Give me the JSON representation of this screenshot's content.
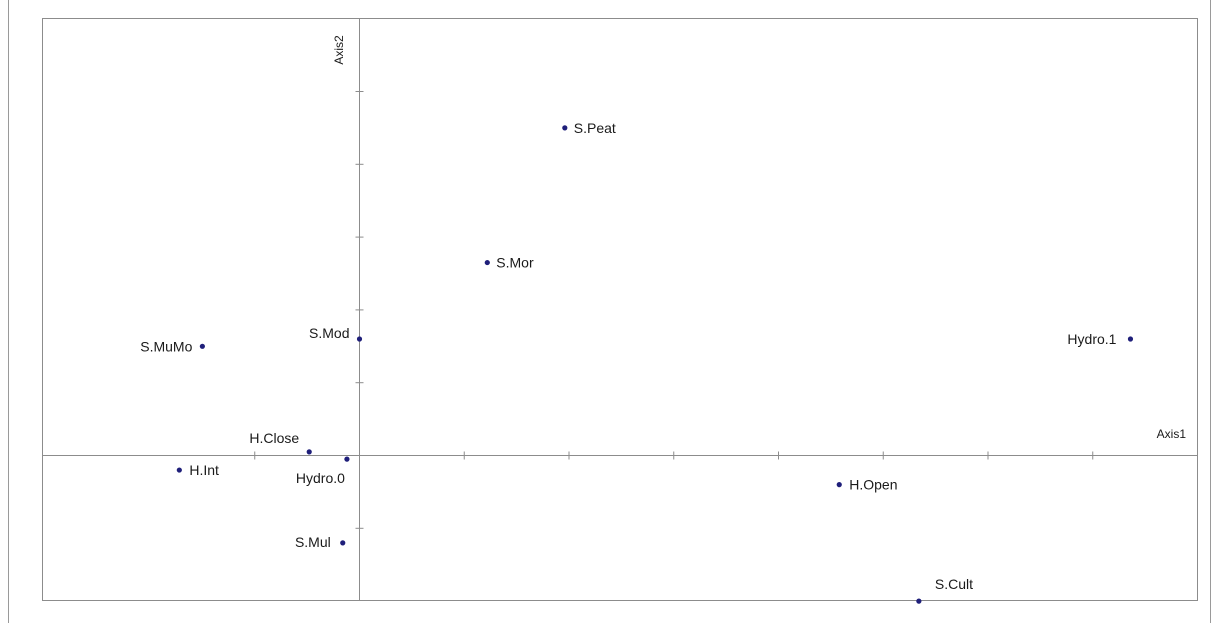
{
  "chart_data": {
    "type": "scatter",
    "title": "",
    "xlabel": "Axis1",
    "ylabel": "Axis2",
    "xlim": [
      -1.5,
      3.9
    ],
    "ylim": [
      -0.4,
      1.2
    ],
    "x_ticks": [
      -0.5,
      0,
      0.5,
      1.0,
      1.5,
      2.0,
      2.5,
      3.0,
      3.5
    ],
    "y_ticks": [
      -0.2,
      0,
      0.2,
      0.4,
      0.6,
      0.8,
      1.0
    ],
    "grid": false,
    "legend": "none",
    "marker_color": "#1f1f7a",
    "points": [
      {
        "label": "S.Peat",
        "x": 0.98,
        "y": 0.9
      },
      {
        "label": "S.Mor",
        "x": 0.61,
        "y": 0.53
      },
      {
        "label": "S.MuMo",
        "x": -0.75,
        "y": 0.3
      },
      {
        "label": "S.Mod",
        "x": 0.0,
        "y": 0.32
      },
      {
        "label": "Hydro.1",
        "x": 3.68,
        "y": 0.32
      },
      {
        "label": "H.Close",
        "x": -0.24,
        "y": 0.01
      },
      {
        "label": "Hydro.0",
        "x": -0.06,
        "y": -0.01
      },
      {
        "label": "H.Int",
        "x": -0.86,
        "y": -0.04
      },
      {
        "label": "H.Open",
        "x": 2.29,
        "y": -0.08
      },
      {
        "label": "S.Mul",
        "x": -0.08,
        "y": -0.24
      },
      {
        "label": "S.Cult",
        "x": 2.67,
        "y": -0.4
      }
    ]
  }
}
